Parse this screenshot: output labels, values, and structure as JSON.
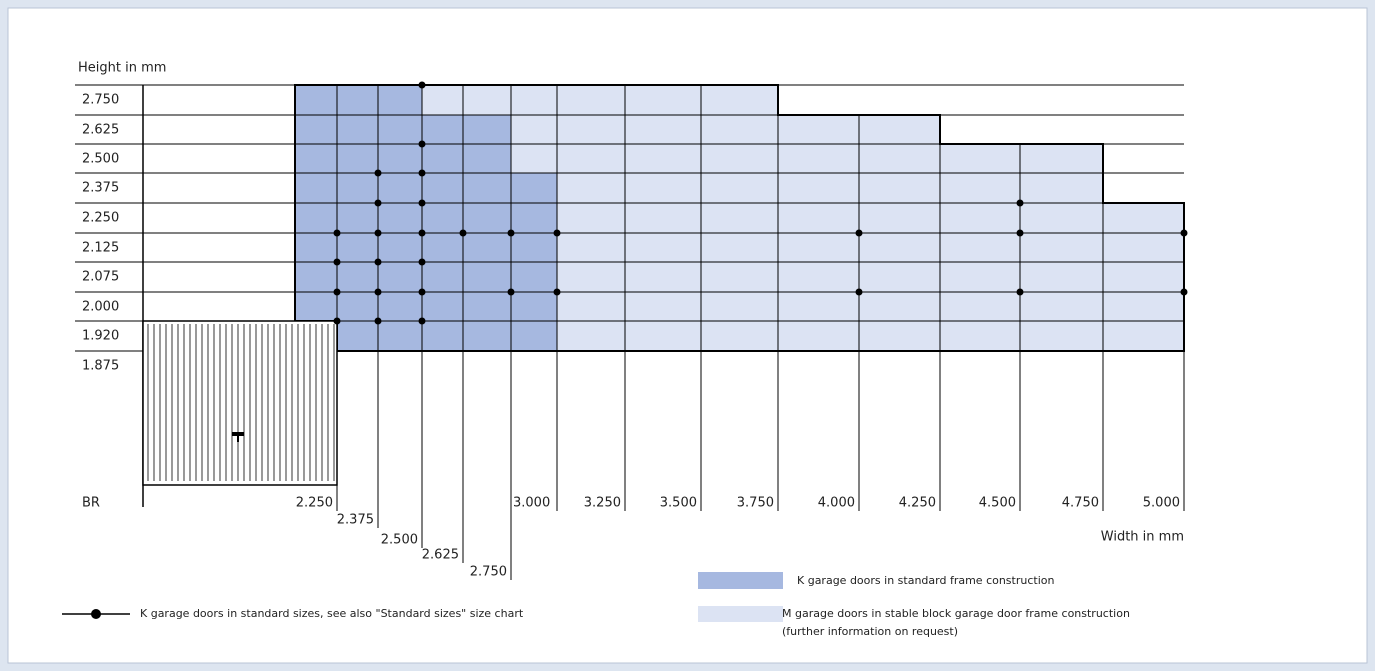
{
  "axis": {
    "y_label": "Height in mm",
    "x_label": "Width in mm",
    "origin_label": "BR",
    "heights": [
      "2.750",
      "2.625",
      "2.500",
      "2.375",
      "2.250",
      "2.125",
      "2.075",
      "2.000",
      "1.920",
      "1.875"
    ],
    "widths": [
      "2.250",
      "2.375",
      "2.500",
      "2.625",
      "2.750",
      "3.000",
      "3.250",
      "3.500",
      "3.750",
      "4.000",
      "4.250",
      "4.500",
      "4.750",
      "5.000"
    ]
  },
  "legend": {
    "standard_sizes": "K garage doors in standard sizes, see also \"Standard sizes\" size chart",
    "k_doors": "K garage doors in standard frame construction",
    "m_doors": [
      "M garage doors in stable block garage door frame construction",
      "(further information on request)"
    ]
  }
}
